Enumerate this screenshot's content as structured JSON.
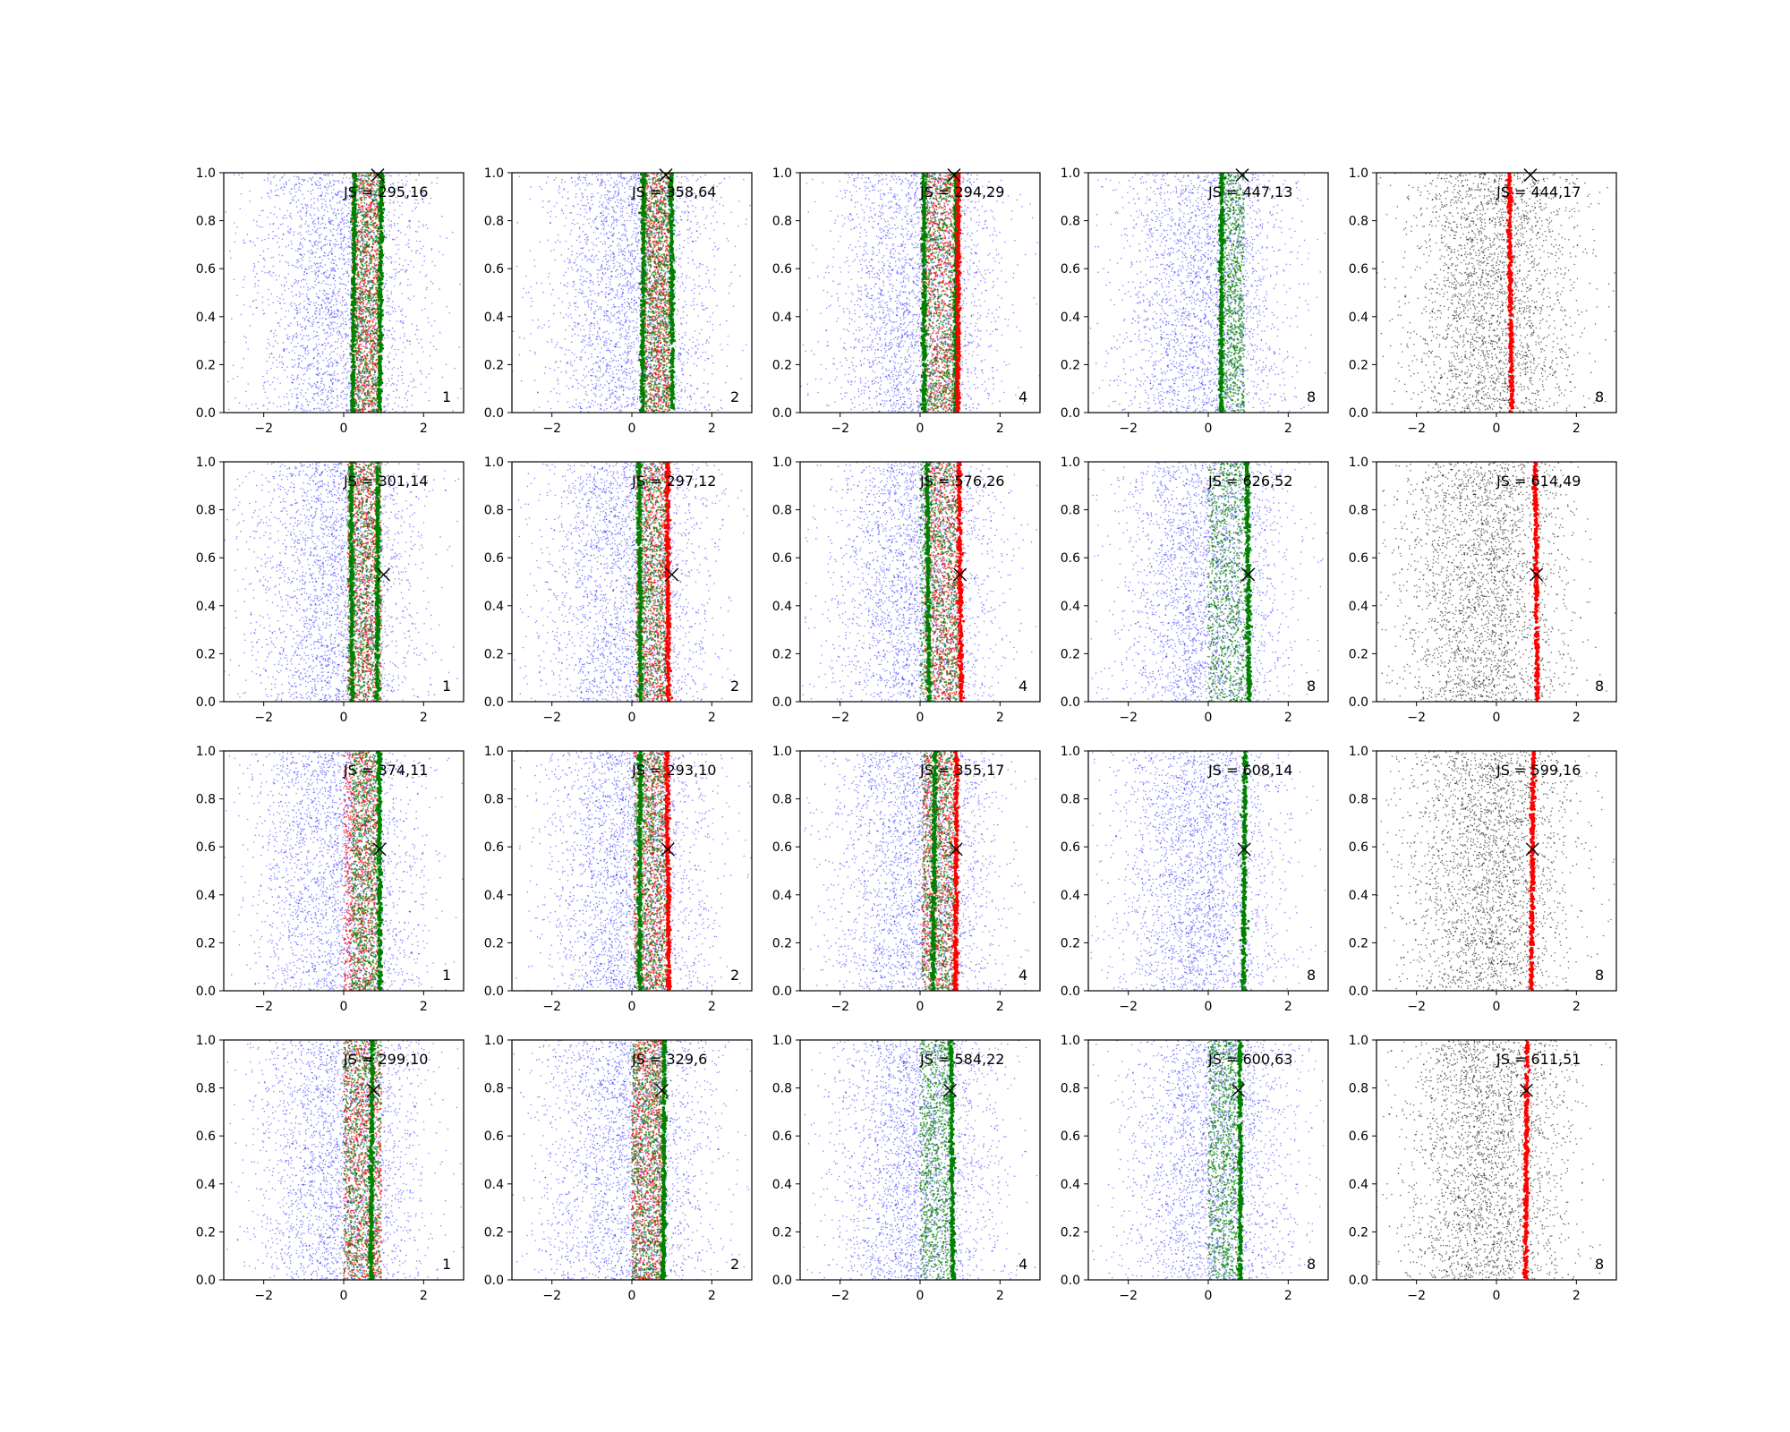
{
  "figure": {
    "grid": "4x5",
    "background": "#ffffff",
    "colors": {
      "model_points": "#0000ff",
      "reference_points": "#000000",
      "red_points": "#ff0000",
      "green_points": "#008000",
      "target_marker": "#000000"
    }
  },
  "chart_data": {
    "type": "scatter",
    "xlim": [
      -3,
      3
    ],
    "ylim": [
      0,
      1
    ],
    "xticks": [
      -2,
      0,
      2
    ],
    "xtick_labels": [
      "−2",
      "0",
      "2"
    ],
    "yticks": [
      0.0,
      0.2,
      0.4,
      0.6,
      0.8,
      1.0
    ],
    "ytick_labels": [
      "0.0",
      "0.2",
      "0.4",
      "0.6",
      "0.8",
      "1.0"
    ],
    "grid": false,
    "legend": "none",
    "panels": [
      {
        "row": 1,
        "col": 1,
        "annotation": "JS = 295,16",
        "corner_label": "1",
        "cloud_color": "blue",
        "cloud_center": -0.1,
        "red_band": [
          0.2,
          0.95
        ],
        "green_band": [
          0.2,
          0.95
        ],
        "green_lines": [
          0.25,
          0.92
        ],
        "red_lines": [],
        "marker": {
          "x": 0.85,
          "y": 0.99
        }
      },
      {
        "row": 1,
        "col": 2,
        "annotation": "JS = 358,64",
        "corner_label": "2",
        "cloud_color": "blue",
        "cloud_center": 0.0,
        "red_band": [
          0.25,
          0.95
        ],
        "green_band": [
          0.25,
          0.95
        ],
        "green_lines": [
          0.28,
          1.0
        ],
        "red_lines": [],
        "marker": {
          "x": 0.85,
          "y": 0.99
        }
      },
      {
        "row": 1,
        "col": 3,
        "annotation": "JS = 294,29",
        "corner_label": "4",
        "cloud_color": "blue",
        "cloud_center": -0.1,
        "red_band": [
          0.05,
          1.0
        ],
        "green_band": [
          0.05,
          1.0
        ],
        "green_lines": [
          0.1,
          0.9
        ],
        "red_lines": [
          0.95
        ],
        "marker": {
          "x": 0.85,
          "y": 0.99
        }
      },
      {
        "row": 1,
        "col": 4,
        "annotation": "JS = 447,13",
        "corner_label": "8",
        "cloud_color": "blue",
        "cloud_center": -0.1,
        "red_band": [],
        "green_band": [
          0.3,
          0.9
        ],
        "green_lines": [
          0.33
        ],
        "red_lines": [],
        "marker": {
          "x": 0.85,
          "y": 0.99
        }
      },
      {
        "row": 1,
        "col": 5,
        "annotation": "JS = 444,17",
        "corner_label": "8",
        "cloud_color": "black",
        "cloud_center": -0.1,
        "red_band": [],
        "green_band": [],
        "green_lines": [],
        "red_lines": [
          0.35
        ],
        "marker": {
          "x": 0.85,
          "y": 0.99
        }
      },
      {
        "row": 2,
        "col": 1,
        "annotation": "JS = 301,14",
        "corner_label": "1",
        "cloud_color": "blue",
        "cloud_center": -0.2,
        "red_band": [
          0.1,
          0.95
        ],
        "green_band": [
          0.1,
          0.95
        ],
        "green_lines": [
          0.2,
          0.85
        ],
        "red_lines": [],
        "marker": {
          "x": 1.0,
          "y": 0.53
        }
      },
      {
        "row": 2,
        "col": 2,
        "annotation": "JS = 297,12",
        "corner_label": "2",
        "cloud_color": "blue",
        "cloud_center": -0.1,
        "red_band": [
          0.1,
          0.95
        ],
        "green_band": [
          0.1,
          0.95
        ],
        "green_lines": [
          0.2
        ],
        "red_lines": [
          0.9
        ],
        "marker": {
          "x": 1.0,
          "y": 0.53
        }
      },
      {
        "row": 2,
        "col": 3,
        "annotation": "JS = 576,26",
        "corner_label": "4",
        "cloud_color": "blue",
        "cloud_center": -0.1,
        "red_band": [
          0.1,
          1.0
        ],
        "green_band": [
          0.0,
          1.0
        ],
        "green_lines": [
          0.2
        ],
        "red_lines": [
          1.0
        ],
        "marker": {
          "x": 1.0,
          "y": 0.53
        }
      },
      {
        "row": 2,
        "col": 4,
        "annotation": "JS = 626,52",
        "corner_label": "8",
        "cloud_color": "blue",
        "cloud_center": -0.1,
        "red_band": [],
        "green_band": [
          0.0,
          1.0
        ],
        "green_lines": [
          1.0
        ],
        "red_lines": [],
        "marker": {
          "x": 1.0,
          "y": 0.53
        }
      },
      {
        "row": 2,
        "col": 5,
        "annotation": "JS = 614,49",
        "corner_label": "8",
        "cloud_color": "black",
        "cloud_center": -0.3,
        "red_band": [],
        "green_band": [],
        "green_lines": [],
        "red_lines": [
          1.0
        ],
        "marker": {
          "x": 1.0,
          "y": 0.53
        }
      },
      {
        "row": 3,
        "col": 1,
        "annotation": "JS = 374,11",
        "corner_label": "1",
        "cloud_color": "blue",
        "cloud_center": -0.1,
        "red_band": [
          0.0,
          0.9
        ],
        "green_band": [
          0.2,
          0.9
        ],
        "green_lines": [
          0.9
        ],
        "red_lines": [],
        "marker": {
          "x": 0.9,
          "y": 0.59
        }
      },
      {
        "row": 3,
        "col": 2,
        "annotation": "JS = 293,10",
        "corner_label": "2",
        "cloud_color": "blue",
        "cloud_center": -0.1,
        "red_band": [
          0.05,
          0.95
        ],
        "green_band": [
          0.05,
          0.9
        ],
        "green_lines": [
          0.2
        ],
        "red_lines": [
          0.9
        ],
        "marker": {
          "x": 0.9,
          "y": 0.59
        }
      },
      {
        "row": 3,
        "col": 3,
        "annotation": "JS = 355,17",
        "corner_label": "4",
        "cloud_color": "blue",
        "cloud_center": -0.1,
        "red_band": [
          0.05,
          0.95
        ],
        "green_band": [
          0.05,
          0.95
        ],
        "green_lines": [
          0.35
        ],
        "red_lines": [
          0.9
        ],
        "marker": {
          "x": 0.9,
          "y": 0.59
        }
      },
      {
        "row": 3,
        "col": 4,
        "annotation": "JS = 608,14",
        "corner_label": "8",
        "cloud_color": "blue",
        "cloud_center": -0.2,
        "red_band": [],
        "green_band": [],
        "green_lines": [
          0.9
        ],
        "red_lines": [],
        "marker": {
          "x": 0.9,
          "y": 0.59
        }
      },
      {
        "row": 3,
        "col": 5,
        "annotation": "JS = 599,16",
        "corner_label": "8",
        "cloud_color": "black",
        "cloud_center": -0.2,
        "red_band": [],
        "green_band": [],
        "green_lines": [],
        "red_lines": [
          0.9
        ],
        "marker": {
          "x": 0.9,
          "y": 0.59
        }
      },
      {
        "row": 4,
        "col": 1,
        "annotation": "JS = 299,10",
        "corner_label": "1",
        "cloud_color": "blue",
        "cloud_center": -0.1,
        "red_band": [
          0.0,
          0.95
        ],
        "green_band": [
          0.0,
          0.95
        ],
        "green_lines": [
          0.7
        ],
        "red_lines": [],
        "marker": {
          "x": 0.75,
          "y": 0.79
        }
      },
      {
        "row": 4,
        "col": 2,
        "annotation": "JS = 329,6",
        "corner_label": "2",
        "cloud_color": "blue",
        "cloud_center": -0.1,
        "red_band": [
          0.0,
          0.8
        ],
        "green_band": [
          0.0,
          0.8
        ],
        "green_lines": [
          0.8
        ],
        "red_lines": [],
        "marker": {
          "x": 0.75,
          "y": 0.79
        }
      },
      {
        "row": 4,
        "col": 3,
        "annotation": "JS = 584,22",
        "corner_label": "4",
        "cloud_color": "blue",
        "cloud_center": -0.1,
        "red_band": [],
        "green_band": [
          0.0,
          0.8
        ],
        "green_lines": [
          0.8
        ],
        "red_lines": [],
        "marker": {
          "x": 0.75,
          "y": 0.79
        }
      },
      {
        "row": 4,
        "col": 4,
        "annotation": "JS = 600,63",
        "corner_label": "8",
        "cloud_color": "blue",
        "cloud_center": 0.1,
        "red_band": [],
        "green_band": [
          0.0,
          0.8
        ],
        "green_lines": [
          0.8
        ],
        "red_lines": [],
        "marker": {
          "x": 0.75,
          "y": 0.79
        }
      },
      {
        "row": 4,
        "col": 5,
        "annotation": "JS = 611,51",
        "corner_label": "8",
        "cloud_color": "black",
        "cloud_center": -0.2,
        "red_band": [],
        "green_band": [],
        "green_lines": [],
        "red_lines": [
          0.75
        ],
        "marker": {
          "x": 0.75,
          "y": 0.79
        }
      }
    ]
  }
}
